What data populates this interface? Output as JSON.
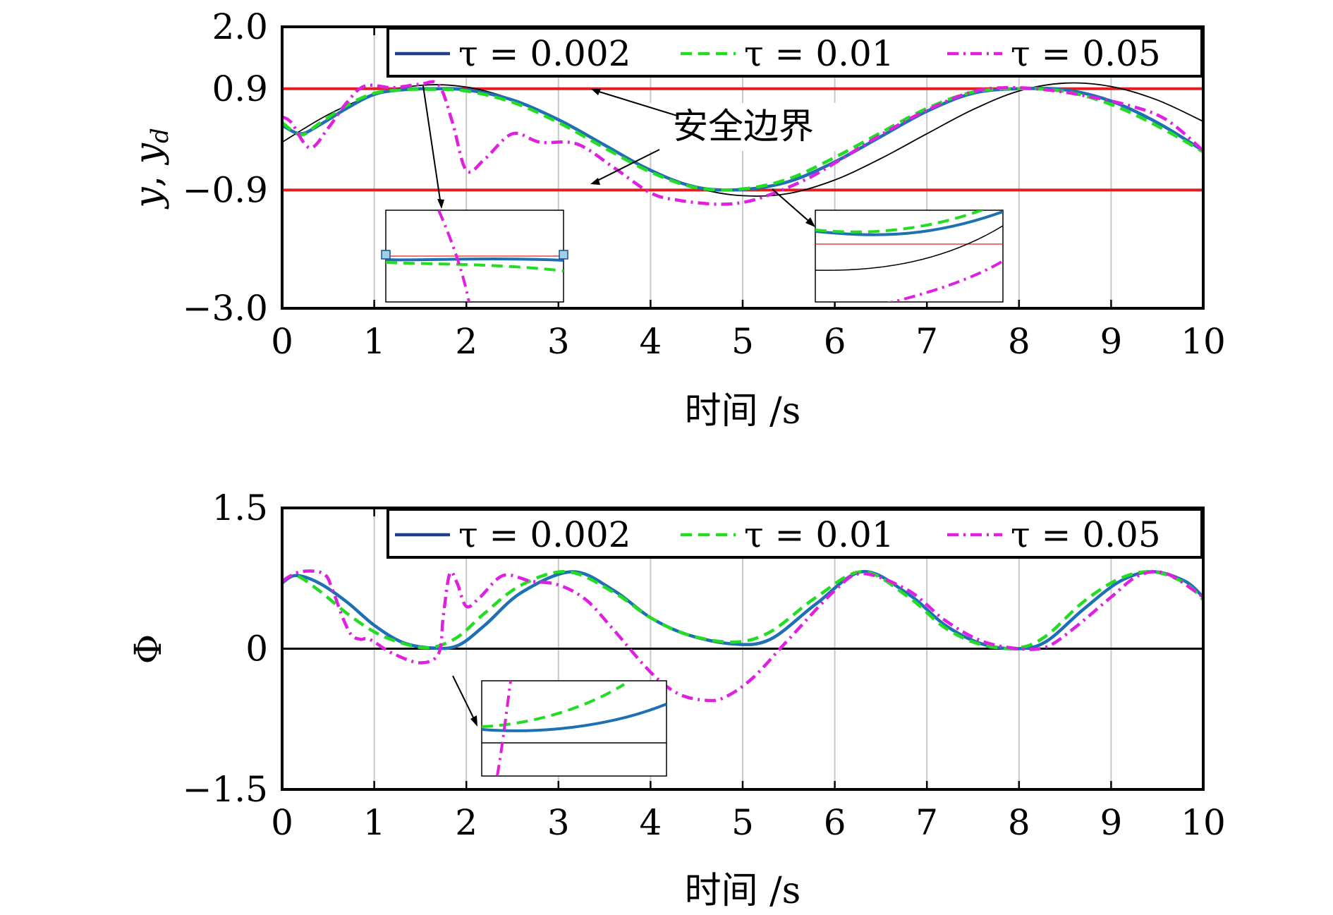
{
  "chart_data": [
    {
      "type": "line",
      "xlabel": "时间 /s",
      "ylabel": "y, y_d",
      "ylabel_parts": {
        "a": "y",
        "b": "y",
        "b_sub": "d"
      },
      "xlim": [
        0,
        10
      ],
      "ylim": [
        -3.0,
        2.0
      ],
      "xticks": [
        0,
        1,
        2,
        3,
        4,
        5,
        6,
        7,
        8,
        9,
        10
      ],
      "yticks": [
        2.0,
        0.9,
        -0.9,
        -3.0
      ],
      "ytick_labels": [
        "2.0",
        "0.9",
        "−0.9",
        "−3.0"
      ],
      "grid": "vertical",
      "legend_position": "top-right",
      "annotation": "安全边界",
      "boundaries": [
        0.9,
        -0.9
      ],
      "reference": {
        "name": "y_d",
        "x": [
          0,
          0.5,
          1,
          1.5,
          2,
          2.5,
          3,
          3.5,
          4,
          4.5,
          5,
          5.5,
          6,
          6.5,
          7,
          7.5,
          8,
          8.5,
          9,
          9.5,
          10
        ],
        "y": [
          -0.05,
          0.44,
          0.79,
          0.96,
          0.93,
          0.71,
          0.34,
          -0.1,
          -0.53,
          -0.86,
          -1.0,
          -0.96,
          -0.72,
          -0.34,
          0.1,
          0.53,
          0.86,
          1.0,
          0.94,
          0.7,
          0.32
        ]
      },
      "series": [
        {
          "name": "τ = 0.002",
          "color": "#1e6fb4",
          "legend_color": "#1f3f8a",
          "dash": "solid",
          "x": [
            0,
            0.2,
            0.4,
            0.7,
            1,
            1.3,
            1.6,
            2,
            2.5,
            3,
            3.5,
            4,
            4.5,
            5,
            5.5,
            6,
            6.5,
            7,
            7.5,
            8,
            8.5,
            9,
            9.5,
            10
          ],
          "y": [
            0.25,
            0.1,
            0.25,
            0.55,
            0.8,
            0.88,
            0.9,
            0.88,
            0.7,
            0.35,
            -0.1,
            -0.55,
            -0.85,
            -0.89,
            -0.75,
            -0.4,
            0.05,
            0.5,
            0.82,
            0.9,
            0.88,
            0.68,
            0.3,
            -0.2
          ]
        },
        {
          "name": "τ = 0.01",
          "color": "#22dd22",
          "dash": "dashed",
          "x": [
            0,
            0.2,
            0.4,
            0.7,
            1,
            1.3,
            1.6,
            2,
            2.5,
            3,
            3.5,
            4,
            4.5,
            5,
            5.5,
            6,
            6.5,
            7,
            7.5,
            8,
            8.5,
            9,
            9.5,
            10
          ],
          "y": [
            0.3,
            0.08,
            0.28,
            0.6,
            0.82,
            0.88,
            0.89,
            0.86,
            0.66,
            0.3,
            -0.15,
            -0.58,
            -0.86,
            -0.88,
            -0.7,
            -0.32,
            0.12,
            0.55,
            0.84,
            0.9,
            0.85,
            0.62,
            0.24,
            -0.22
          ]
        },
        {
          "name": "τ = 0.05",
          "color": "#e020e0",
          "dash": "dashdot",
          "x": [
            0,
            0.1,
            0.3,
            0.5,
            0.7,
            0.9,
            1.2,
            1.5,
            1.7,
            1.85,
            2.0,
            2.2,
            2.5,
            2.8,
            3.2,
            3.6,
            4,
            4.3,
            4.7,
            5.0,
            5.3,
            5.7,
            6,
            6.5,
            7,
            7.5,
            7.9,
            8.3,
            8.7,
            9.2,
            9.6,
            10
          ],
          "y": [
            0.4,
            0.3,
            -0.15,
            0.2,
            0.65,
            0.95,
            0.92,
            0.98,
            0.97,
            0.3,
            -0.55,
            -0.35,
            0.1,
            -0.05,
            -0.08,
            -0.5,
            -0.95,
            -1.08,
            -1.15,
            -1.12,
            -0.98,
            -0.7,
            -0.42,
            0.08,
            0.52,
            0.85,
            0.92,
            0.88,
            0.78,
            0.6,
            0.35,
            -0.2
          ]
        }
      ]
    },
    {
      "type": "line",
      "xlabel": "时间 /s",
      "ylabel": "Φ",
      "xlim": [
        0,
        10
      ],
      "ylim": [
        -1.5,
        1.5
      ],
      "xticks": [
        0,
        1,
        2,
        3,
        4,
        5,
        6,
        7,
        8,
        9,
        10
      ],
      "yticks": [
        1.5,
        0,
        -1.5
      ],
      "ytick_labels": [
        "1.5",
        "0",
        "−1.5"
      ],
      "grid": "vertical",
      "legend_position": "top-right",
      "series": [
        {
          "name": "τ = 0.002",
          "color": "#1e6fb4",
          "legend_color": "#1f3f8a",
          "dash": "solid",
          "x": [
            0,
            0.15,
            0.4,
            0.7,
            1,
            1.3,
            1.6,
            1.9,
            2.2,
            2.6,
            3.15,
            3.6,
            4,
            4.4,
            4.9,
            5.3,
            5.8,
            6.3,
            6.8,
            7.2,
            7.6,
            8.0,
            8.3,
            8.7,
            9.1,
            9.45,
            9.8,
            10
          ],
          "y": [
            0.7,
            0.78,
            0.7,
            0.5,
            0.25,
            0.07,
            0.01,
            0.03,
            0.25,
            0.6,
            0.82,
            0.62,
            0.33,
            0.15,
            0.05,
            0.1,
            0.48,
            0.82,
            0.58,
            0.25,
            0.05,
            0.0,
            0.08,
            0.42,
            0.72,
            0.82,
            0.72,
            0.55
          ]
        },
        {
          "name": "τ = 0.01",
          "color": "#22dd22",
          "dash": "dashed",
          "x": [
            0,
            0.15,
            0.4,
            0.7,
            1,
            1.3,
            1.6,
            1.9,
            2.2,
            2.6,
            3.1,
            3.6,
            4,
            4.4,
            4.9,
            5.3,
            5.8,
            6.3,
            6.8,
            7.2,
            7.6,
            8.0,
            8.3,
            8.7,
            9.1,
            9.45,
            9.8,
            10
          ],
          "y": [
            0.72,
            0.78,
            0.62,
            0.38,
            0.18,
            0.06,
            0.01,
            0.12,
            0.38,
            0.68,
            0.82,
            0.6,
            0.33,
            0.15,
            0.07,
            0.18,
            0.55,
            0.82,
            0.55,
            0.22,
            0.04,
            0.01,
            0.14,
            0.5,
            0.75,
            0.82,
            0.7,
            0.52
          ]
        },
        {
          "name": "τ = 0.05",
          "color": "#e020e0",
          "dash": "dashdot",
          "x": [
            0,
            0.2,
            0.45,
            0.55,
            0.65,
            0.75,
            0.85,
            0.95,
            1.2,
            1.5,
            1.7,
            1.75,
            1.82,
            1.9,
            2.0,
            2.15,
            2.4,
            2.7,
            3.0,
            3.3,
            3.6,
            4,
            4.3,
            4.6,
            4.8,
            5.1,
            5.5,
            6.0,
            6.3,
            6.8,
            7.2,
            7.6,
            8.0,
            8.3,
            8.6,
            9.0,
            9.3,
            9.6,
            10
          ],
          "y": [
            0.72,
            0.82,
            0.8,
            0.62,
            0.35,
            0.15,
            0.1,
            0.1,
            -0.05,
            -0.15,
            -0.05,
            0.35,
            0.8,
            0.7,
            0.45,
            0.55,
            0.78,
            0.72,
            0.68,
            0.52,
            0.2,
            -0.25,
            -0.48,
            -0.55,
            -0.52,
            -0.32,
            0.1,
            0.62,
            0.8,
            0.62,
            0.3,
            0.08,
            0.0,
            0.02,
            0.22,
            0.55,
            0.78,
            0.8,
            0.55
          ]
        }
      ]
    }
  ]
}
